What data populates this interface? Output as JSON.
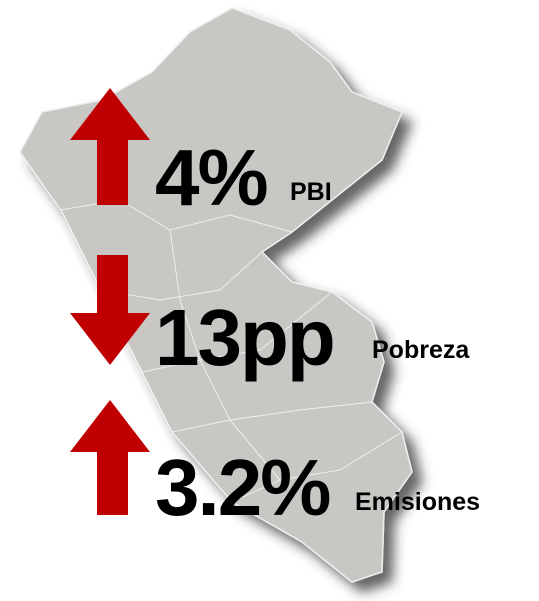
{
  "items": [
    {
      "value": "4%",
      "label": "PBI",
      "direction": "up"
    },
    {
      "value": "13pp",
      "label": "Pobreza",
      "direction": "down"
    },
    {
      "value": "3.2%",
      "label": "Emisiones",
      "direction": "up"
    }
  ]
}
